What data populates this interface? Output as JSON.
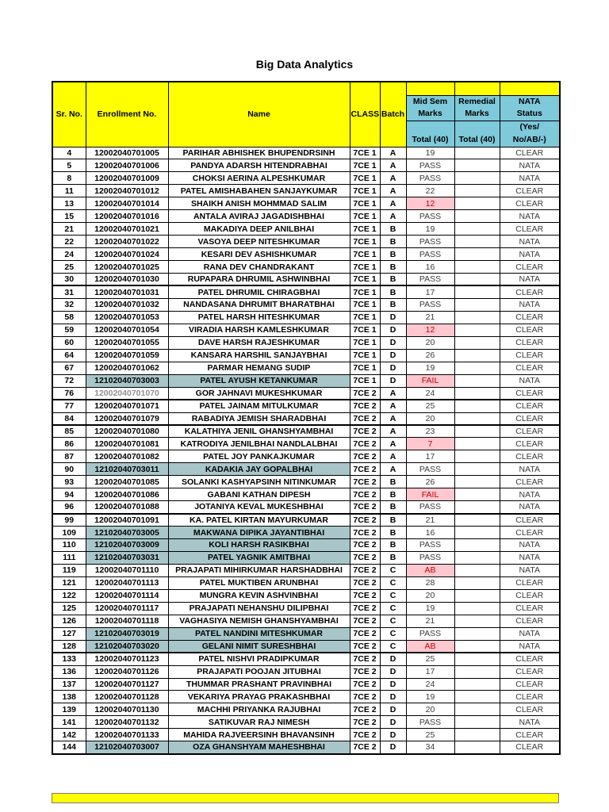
{
  "title": "Big Data Analytics",
  "colors": {
    "header_yellow": "#FFFF00",
    "header_teal": "#7EC9DA",
    "d2d_row_teal": "#A8C6C9",
    "bad_cell_bg": "#FFC7CE",
    "bad_cell_text": "#C00000",
    "grid_border": "#000000"
  },
  "table": {
    "header": {
      "sr_no": "Sr. No.",
      "enrollment": "Enrollment No.",
      "name": "Name",
      "class": "CLASS",
      "batch": "Batch",
      "mid_l1": "Mid Sem",
      "mid_l2": "Marks",
      "rem_l1": "Remedial",
      "rem_l2": "Marks",
      "nata_l1": "NATA",
      "nata_l2": "Status",
      "mid_total": "Total (40)",
      "rem_total": "Total (40)",
      "nata_sub1": "(Yes/",
      "nata_sub2": "No/AB/-)"
    },
    "rows": [
      [
        "4",
        "12002040701005",
        "PARIHAR ABHISHEK BHUPENDRSINH",
        "7CE 1",
        "A",
        "19",
        "",
        "CLEAR",
        []
      ],
      [
        "5",
        "12002040701006",
        "PANDYA ADARSH HITENDRABHAI",
        "7CE 1",
        "A",
        "PASS",
        "",
        "NATA",
        []
      ],
      [
        "8",
        "12002040701009",
        "CHOKSI AERINA ALPESHKUMAR",
        "7CE 1",
        "A",
        "PASS",
        "",
        "NATA",
        []
      ],
      [
        "11",
        "12002040701012",
        "PATEL AMISHABAHEN SANJAYKUMAR",
        "7CE 1",
        "A",
        "22",
        "",
        "CLEAR",
        []
      ],
      [
        "13",
        "12002040701014",
        "SHAIKH ANISH MOHMMAD SALIM",
        "7CE 1",
        "A",
        "12",
        "",
        "CLEAR",
        [
          "bad"
        ]
      ],
      [
        "15",
        "12002040701016",
        "ANTALA AVIRAJ JAGADISHBHAI",
        "7CE 1",
        "A",
        "PASS",
        "",
        "NATA",
        []
      ],
      [
        "21",
        "12002040701021",
        "MAKADIYA DEEP ANILBHAI",
        "7CE 1",
        "B",
        "19",
        "",
        "CLEAR",
        []
      ],
      [
        "22",
        "12002040701022",
        "VASOYA DEEP NITESHKUMAR",
        "7CE 1",
        "B",
        "PASS",
        "",
        "NATA",
        []
      ],
      [
        "24",
        "12002040701024",
        "KESARI DEV ASHISHKUMAR",
        "7CE 1",
        "B",
        "PASS",
        "",
        "NATA",
        []
      ],
      [
        "25",
        "12002040701025",
        "RANA DEV CHANDRAKANT",
        "7CE 1",
        "B",
        "16",
        "",
        "CLEAR",
        []
      ],
      [
        "30",
        "12002040701030",
        "RUPAPARA DHRUMIL ASHWINBHAI",
        "7CE 1",
        "B",
        "PASS",
        "",
        "NATA",
        []
      ],
      [
        "31",
        "12002040701031",
        "PATEL DHRUMIL CHIRAGBHAI",
        "7CE 1",
        "B",
        "17",
        "",
        "CLEAR",
        [
          "thick"
        ]
      ],
      [
        "32",
        "12002040701032",
        "NANDASANA DHRUMIT BHARATBHAI",
        "7CE 1",
        "B",
        "PASS",
        "",
        "NATA",
        []
      ],
      [
        "58",
        "12002040701053",
        "PATEL HARSH HITESHKUMAR",
        "7CE 1",
        "D",
        "21",
        "",
        "CLEAR",
        []
      ],
      [
        "59",
        "12002040701054",
        "VIRADIA HARSH KAMLESHKUMAR",
        "7CE 1",
        "D",
        "12",
        "",
        "CLEAR",
        [
          "bad"
        ]
      ],
      [
        "60",
        "12002040701055",
        "DAVE HARSH RAJESHKUMAR",
        "7CE 1",
        "D",
        "20",
        "",
        "CLEAR",
        []
      ],
      [
        "64",
        "12002040701059",
        "KANSARA HARSHIL SANJAYBHAI",
        "7CE 1",
        "D",
        "26",
        "",
        "CLEAR",
        []
      ],
      [
        "67",
        "12002040701062",
        "PARMAR HEMANG SUDIP",
        "7CE 1",
        "D",
        "19",
        "",
        "CLEAR",
        []
      ],
      [
        "72",
        "12102040703003",
        "PATEL AYUSH KETANKUMAR",
        "7CE 1",
        "D",
        "FAIL",
        "",
        "NATA",
        [
          "d2d",
          "bad"
        ]
      ],
      [
        "76",
        "12002040701070",
        "GOR JAHNAVI MUKESHKUMAR",
        "7CE 2",
        "A",
        "24",
        "",
        "CLEAR",
        [
          "gray"
        ]
      ],
      [
        "77",
        "12002040701071",
        "PATEL JAINAM MITULKUMAR",
        "7CE 2",
        "A",
        "25",
        "",
        "CLEAR",
        [
          "thick"
        ]
      ],
      [
        "84",
        "12002040701079",
        "RABADIYA JEMISH SHARADBHAI",
        "7CE 2",
        "A",
        "20",
        "",
        "CLEAR",
        []
      ],
      [
        "85",
        "12002040701080",
        "KALATHIYA JENIL GHANSHYAMBHAI",
        "7CE 2",
        "A",
        "23",
        "",
        "CLEAR",
        [
          "thick"
        ]
      ],
      [
        "86",
        "12002040701081",
        "KATRODIYA JENILBHAI NANDLALBHAI",
        "7CE 2",
        "A",
        "7",
        "",
        "CLEAR",
        [
          "bad"
        ]
      ],
      [
        "87",
        "12002040701082",
        "PATEL JOY PANKAJKUMAR",
        "7CE 2",
        "A",
        "17",
        "",
        "CLEAR",
        []
      ],
      [
        "90",
        "12102040703011",
        "KADAKIA JAY GOPALBHAI",
        "7CE 2",
        "A",
        "PASS",
        "",
        "NATA",
        [
          "d2d"
        ]
      ],
      [
        "93",
        "12002040701085",
        "SOLANKI KASHYAPSINH NITINKUMAR",
        "7CE 2",
        "B",
        "26",
        "",
        "CLEAR",
        []
      ],
      [
        "94",
        "12002040701086",
        "GABANI KATHAN DIPESH",
        "7CE 2",
        "B",
        "FAIL",
        "",
        "NATA",
        [
          "bad"
        ]
      ],
      [
        "96",
        "12002040701088",
        "JOTANIYA KEVAL MUKESHBHAI",
        "7CE 2",
        "B",
        "PASS",
        "",
        "NATA",
        []
      ],
      [
        "99",
        "12002040701091",
        "KA. PATEL KIRTAN MAYURKUMAR",
        "7CE 2",
        "B",
        "21",
        "",
        "CLEAR",
        [
          "thick"
        ]
      ],
      [
        "109",
        "12102040703005",
        "MAKWANA DIPIKA JAYANTIBHAI",
        "7CE 2",
        "B",
        "16",
        "",
        "CLEAR",
        [
          "d2d"
        ]
      ],
      [
        "110",
        "12102040703009",
        "KOLI HARSH RASIKBHAI",
        "7CE 2",
        "B",
        "PASS",
        "",
        "NATA",
        [
          "d2d"
        ]
      ],
      [
        "111",
        "12102040703031",
        "PATEL YAGNIK AMITBHAI",
        "7CE 2",
        "B",
        "PASS",
        "",
        "NATA",
        [
          "d2d"
        ]
      ],
      [
        "119",
        "12002040701110",
        "PRAJAPATI MIHIRKUMAR HARSHADBHAI",
        "7CE 2",
        "C",
        "AB",
        "",
        "NATA",
        [
          "bad"
        ]
      ],
      [
        "121",
        "12002040701113",
        "PATEL MUKTIBEN ARUNBHAI",
        "7CE 2",
        "C",
        "28",
        "",
        "CLEAR",
        []
      ],
      [
        "122",
        "12002040701114",
        "MUNGRA KEVIN ASHVINBHAI",
        "7CE 2",
        "C",
        "20",
        "",
        "CLEAR",
        []
      ],
      [
        "125",
        "12002040701117",
        "PRAJAPATI NEHANSHU DILIPBHAI",
        "7CE 2",
        "C",
        "19",
        "",
        "CLEAR",
        []
      ],
      [
        "126",
        "12002040701118",
        "VAGHASIYA NEMISH GHANSHYAMBHAI",
        "7CE 2",
        "C",
        "21",
        "",
        "CLEAR",
        []
      ],
      [
        "127",
        "12102040703019",
        "PATEL NANDINI MITESHKUMAR",
        "7CE 2",
        "C",
        "PASS",
        "",
        "NATA",
        [
          "d2d"
        ]
      ],
      [
        "128",
        "12102040703020",
        "GELANI NIMIT SURESHBHAI",
        "7CE 2",
        "C",
        "AB",
        "",
        "NATA",
        [
          "d2d",
          "bad"
        ]
      ],
      [
        "133",
        "12002040701123",
        "PATEL NISHVI PRADIPKUMAR",
        "7CE 2",
        "D",
        "25",
        "",
        "CLEAR",
        [
          "thick"
        ]
      ],
      [
        "136",
        "12002040701126",
        "PRAJAPATI POOJAN JITUBHAI",
        "7CE 2",
        "D",
        "17",
        "",
        "CLEAR",
        []
      ],
      [
        "137",
        "12002040701127",
        "THUMMAR PRASHANT PRAVINBHAI",
        "7CE 2",
        "D",
        "24",
        "",
        "CLEAR",
        []
      ],
      [
        "138",
        "12002040701128",
        "VEKARIYA PRAYAG PRAKASHBHAI",
        "7CE 2",
        "D",
        "19",
        "",
        "CLEAR",
        []
      ],
      [
        "139",
        "12002040701130",
        "MACHHI PRIYANKA RAJUBHAI",
        "7CE 2",
        "D",
        "20",
        "",
        "CLEAR",
        []
      ],
      [
        "141",
        "12002040701132",
        "SATIKUVAR RAJ NIMESH",
        "7CE 2",
        "D",
        "PASS",
        "",
        "NATA",
        []
      ],
      [
        "142",
        "12002040701133",
        "MAHIDA RAJVEERSINH BHAVANSINH",
        "7CE 2",
        "D",
        "25",
        "",
        "CLEAR",
        []
      ],
      [
        "144",
        "12102040703007",
        "OZA GHANSHYAM MAHESHBHAI",
        "7CE 2",
        "D",
        "34",
        "",
        "CLEAR",
        [
          "d2d"
        ]
      ]
    ]
  }
}
